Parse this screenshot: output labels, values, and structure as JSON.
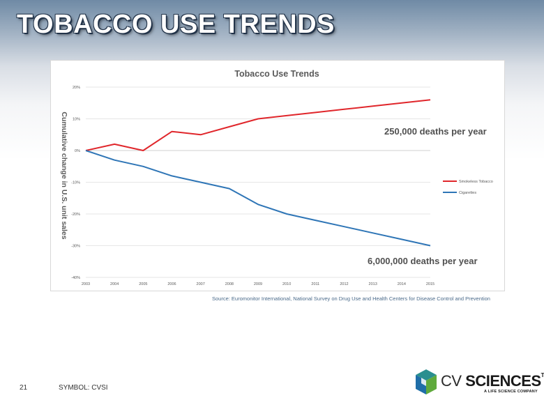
{
  "slide": {
    "title": "TOBACCO USE TRENDS",
    "page_number": "21",
    "symbol": "SYMBOL: CVSI",
    "source": "Source: Euromonitor International, National Survey on Drug Use and Health Centers for Disease Control and Prevention",
    "annotation_smokeless": "250,000 deaths per year",
    "annotation_cigarettes": "6,000,000 deaths per year"
  },
  "logo": {
    "text_cv": "CV",
    "text_sciences": "SCIENCES",
    "tm": "TM",
    "tagline": "A LIFE SCIENCE COMPANY",
    "colors": {
      "cube_blue": "#1f6ea8",
      "cube_green": "#5faa3c",
      "cube_teal": "#2a8f8f"
    }
  },
  "chart_data": {
    "type": "line",
    "title": "Tobacco Use Trends",
    "xlabel": "",
    "ylabel": "Cumulative change in U.S. unit sales",
    "x": [
      2003,
      2004,
      2005,
      2006,
      2007,
      2008,
      2009,
      2010,
      2011,
      2012,
      2013,
      2014,
      2015
    ],
    "x_tick_labels": [
      "2003",
      "2004",
      "2005",
      "2006",
      "2007",
      "2008",
      "2009",
      "2010",
      "2011",
      "2012",
      "2013",
      "2014",
      "2015"
    ],
    "y_ticks": [
      20,
      10,
      0,
      -10,
      -20,
      -30,
      -40
    ],
    "y_tick_labels": [
      "20%",
      "10%",
      "0%",
      "-10%",
      "-20%",
      "-30%",
      "-40%"
    ],
    "ylim": [
      -40,
      20
    ],
    "grid": true,
    "legend_placement": "right",
    "series": [
      {
        "name": "Smokeless Tobacco",
        "color": "#e0262b",
        "values": [
          0,
          2,
          0,
          6,
          5,
          7.5,
          10,
          11,
          12,
          13,
          14,
          15,
          16
        ]
      },
      {
        "name": "Cigarettes",
        "color": "#2e75b6",
        "values": [
          0,
          -3,
          -5,
          -8,
          -10,
          -12,
          -17,
          -20,
          -22,
          -24,
          -26,
          -28,
          -30
        ]
      }
    ]
  }
}
